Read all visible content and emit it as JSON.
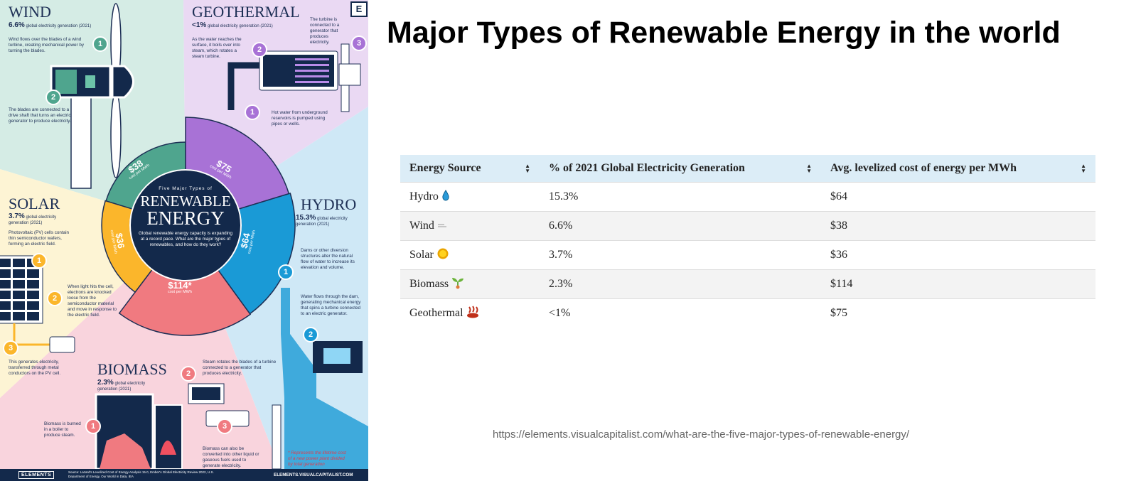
{
  "title": "Major Types of Renewable Energy in the world",
  "url": "https://elements.visualcapitalist.com/what-are-the-five-major-types-of-renewable-energy/",
  "infographic": {
    "logo_letter": "E",
    "center": {
      "kicker": "Five Major Types of",
      "title_line1": "RENEWABLE",
      "title_line2": "ENERGY",
      "description": "Global renewable energy capacity is expanding at a record pace. What are the major types of renewables, and how do they work?"
    },
    "cost_unit": "cost per MWh",
    "segments": {
      "wind": {
        "cost": "$38",
        "color": "#4fa58e"
      },
      "geothermal": {
        "cost": "$75",
        "color": "#a872d6"
      },
      "hydro": {
        "cost": "$64",
        "color": "#1a9ad6"
      },
      "biomass": {
        "cost": "$114*",
        "color": "#f07a80"
      },
      "solar": {
        "cost": "$36",
        "color": "#fbb62b"
      }
    },
    "wind": {
      "title": "WIND",
      "pct": "6.6%",
      "pct_label": "global electricity generation (2021)",
      "steps": [
        "Wind flows over the blades of a wind turbine, creating mechanical power by turning the blades.",
        "The blades are connected to a drive shaft that turns an electric generator to produce electricity."
      ]
    },
    "geothermal": {
      "title": "GEOTHERMAL",
      "pct": "<1%",
      "pct_label": "global electricity generation (2021)",
      "steps": [
        "Hot water from underground reservoirs is pumped using pipes or wells.",
        "As the water reaches the surface, it boils over into steam, which rotates a steam turbine.",
        "The turbine is connected to a generator that produces electricity."
      ]
    },
    "solar": {
      "title": "SOLAR",
      "pct": "3.7%",
      "pct_label": "global electricity generation (2021)",
      "steps": [
        "Photovoltaic (PV) cells contain thin semiconductor wafers, forming an electric field.",
        "When light hits the cell, electrons are knocked loose from the semiconductor material and move in response to the electric field.",
        "This generates electricity, transferred through metal conductors on the PV cell."
      ]
    },
    "hydro": {
      "title": "HYDRO",
      "pct": "15.3%",
      "pct_label": "global electricity generation (2021)",
      "steps": [
        "Dams or other diversion structures alter the natural flow of water to increase its elevation and volume.",
        "Water flows through the dam, generating mechanical energy that spins a turbine connected to an electric generator."
      ]
    },
    "biomass": {
      "title": "BIOMASS",
      "pct": "2.3%",
      "pct_label": "global electricity generation (2021)",
      "steps": [
        "Biomass is burned in a boiler to produce steam.",
        "Steam rotates the blades of a turbine connected to a generator that produces electricity.",
        "Biomass can also be converted into other liquid or gaseous fuels used to generate electricity."
      ]
    },
    "footnote": "* Represents the lifetime cost of a new power plant divided by total generation",
    "footer": {
      "brand": "ELEMENTS",
      "source": "Source: Lazard's Levelized Cost of Energy Analysis 15.0, Ember's Global Electricity Review 2022, U.S. Department of Energy, Our World in Data, IEA",
      "site": "ELEMENTS.VISUALCAPITALIST.COM"
    }
  },
  "table": {
    "headers": [
      "Energy Source",
      "% of 2021 Global Electricity Generation",
      "Avg. levelized cost of energy per MWh"
    ],
    "rows": [
      {
        "source": "Hydro",
        "icon": "droplet-icon",
        "pct": "15.3%",
        "cost": "$64"
      },
      {
        "source": "Wind",
        "icon": "wind-icon",
        "pct": "6.6%",
        "cost": "$38"
      },
      {
        "source": "Solar",
        "icon": "sun-icon",
        "pct": "3.7%",
        "cost": "$36"
      },
      {
        "source": "Biomass",
        "icon": "seedling-icon",
        "pct": "2.3%",
        "cost": "$114"
      },
      {
        "source": "Geothermal",
        "icon": "hot-springs-icon",
        "pct": "<1%",
        "cost": "$75"
      }
    ]
  }
}
